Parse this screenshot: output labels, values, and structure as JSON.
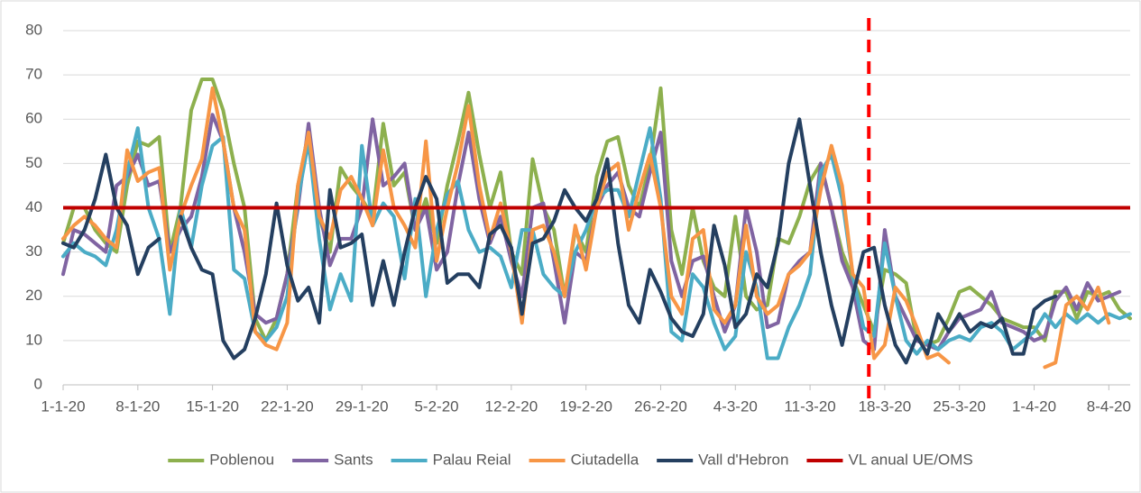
{
  "chart_data": {
    "type": "line",
    "categories": [
      "1-1-20",
      null,
      null,
      null,
      null,
      null,
      null,
      "8-1-20",
      null,
      null,
      null,
      null,
      null,
      null,
      "15-1-20",
      null,
      null,
      null,
      null,
      null,
      null,
      "22-1-20",
      null,
      null,
      null,
      null,
      null,
      null,
      "29-1-20",
      null,
      null,
      null,
      null,
      null,
      null,
      "5-2-20",
      null,
      null,
      null,
      null,
      null,
      null,
      "12-2-20",
      null,
      null,
      null,
      null,
      null,
      null,
      "19-2-20",
      null,
      null,
      null,
      null,
      null,
      null,
      "26-2-20",
      null,
      null,
      null,
      null,
      null,
      null,
      "4-3-20",
      null,
      null,
      null,
      null,
      null,
      null,
      "11-3-20",
      null,
      null,
      null,
      null,
      null,
      null,
      "18-3-20",
      null,
      null,
      null,
      null,
      null,
      null,
      "25-3-20",
      null,
      null,
      null,
      null,
      null,
      null,
      "1-4-20",
      null,
      null,
      null,
      null,
      null,
      null,
      "8-4-20",
      null,
      null
    ],
    "ylim": [
      0,
      80
    ],
    "yticks": [
      0,
      10,
      20,
      30,
      40,
      50,
      60,
      70,
      80
    ],
    "series": [
      {
        "name": "Poblenou",
        "color": "#8db04e",
        "values": [
          32,
          40,
          40,
          35,
          32,
          30,
          45,
          55,
          54,
          56,
          30,
          40,
          62,
          69,
          69,
          62,
          50,
          40,
          15,
          10,
          15,
          25,
          45,
          57,
          38,
          30,
          49,
          45,
          42,
          38,
          59,
          45,
          48,
          35,
          42,
          32,
          45,
          55,
          66,
          52,
          40,
          48,
          30,
          25,
          51,
          40,
          35,
          20,
          35,
          30,
          47,
          55,
          56,
          45,
          40,
          50,
          67,
          35,
          25,
          40,
          28,
          22,
          20,
          38,
          20,
          17,
          18,
          33,
          32,
          38,
          46,
          50,
          40,
          30,
          24,
          18,
          12,
          26,
          25,
          23,
          10,
          9,
          10,
          15,
          21,
          22,
          20,
          18,
          15,
          14,
          13,
          13,
          10,
          21,
          21,
          15,
          21,
          20,
          21,
          17,
          15
        ]
      },
      {
        "name": "Sants",
        "color": "#8064a2",
        "values": [
          25,
          35,
          34,
          32,
          30,
          45,
          47,
          52,
          45,
          46,
          30,
          35,
          38,
          47,
          61,
          55,
          40,
          30,
          16,
          14,
          15,
          25,
          40,
          59,
          40,
          27,
          33,
          33,
          40,
          60,
          45,
          47,
          50,
          35,
          40,
          26,
          30,
          45,
          57,
          42,
          32,
          38,
          28,
          20,
          40,
          41,
          28,
          14,
          30,
          28,
          40,
          45,
          48,
          40,
          38,
          48,
          57,
          28,
          20,
          28,
          29,
          20,
          12,
          18,
          40,
          30,
          13,
          14,
          25,
          28,
          30,
          50,
          40,
          28,
          22,
          10,
          8,
          35,
          20,
          15,
          10,
          9,
          8,
          12,
          15,
          16,
          17,
          21,
          14,
          13,
          12,
          10,
          11,
          19,
          22,
          17,
          23,
          19,
          20,
          21,
          null
        ]
      },
      {
        "name": "Palau Reial",
        "color": "#4bacc6",
        "values": [
          29,
          32,
          30,
          29,
          27,
          35,
          48,
          58,
          40,
          33,
          16,
          40,
          31,
          45,
          54,
          56,
          26,
          24,
          12,
          10,
          13,
          20,
          42,
          55,
          33,
          17,
          25,
          19,
          54,
          36,
          41,
          38,
          24,
          42,
          20,
          35,
          43,
          46,
          35,
          30,
          31,
          29,
          22,
          35,
          35,
          25,
          22,
          20,
          30,
          35,
          42,
          44,
          44,
          38,
          48,
          58,
          42,
          12,
          10,
          25,
          22,
          14,
          8,
          11,
          30,
          22,
          6,
          6,
          13,
          18,
          25,
          48,
          52,
          42,
          25,
          13,
          11,
          32,
          20,
          10,
          7,
          10,
          8,
          10,
          11,
          10,
          13,
          14,
          12,
          8,
          10,
          12,
          16,
          13,
          16,
          14,
          16,
          14,
          16,
          15,
          16
        ]
      },
      {
        "name": "Ciutadella",
        "color": "#f79646",
        "values": [
          33,
          36,
          38,
          36,
          33,
          31,
          53,
          46,
          48,
          49,
          26,
          38,
          45,
          51,
          67,
          55,
          40,
          35,
          12,
          9,
          8,
          14,
          45,
          57,
          38,
          33,
          44,
          47,
          42,
          36,
          53,
          40,
          36,
          31,
          55,
          28,
          40,
          50,
          63,
          45,
          33,
          41,
          30,
          14,
          35,
          36,
          30,
          20,
          36,
          26,
          40,
          48,
          50,
          35,
          44,
          52,
          40,
          20,
          16,
          33,
          35,
          17,
          14,
          18,
          36,
          20,
          16,
          18,
          25,
          27,
          30,
          44,
          54,
          45,
          25,
          22,
          6,
          9,
          22,
          19,
          13,
          6,
          7,
          5,
          null,
          null,
          null,
          null,
          null,
          null,
          null,
          null,
          4,
          5,
          18,
          20,
          17,
          22,
          14,
          null,
          null
        ]
      },
      {
        "name": "Vall d'Hebron",
        "color": "#243f60",
        "values": [
          32,
          31,
          35,
          42,
          52,
          40,
          36,
          25,
          31,
          33,
          null,
          38,
          31,
          26,
          25,
          10,
          6,
          8,
          15,
          25,
          41,
          27,
          19,
          22,
          14,
          44,
          31,
          32,
          34,
          18,
          28,
          18,
          30,
          40,
          47,
          42,
          23,
          25,
          25,
          22,
          34,
          36,
          31,
          16,
          32,
          33,
          37,
          44,
          40,
          37,
          42,
          51,
          32,
          18,
          14,
          26,
          21,
          15,
          12,
          11,
          16,
          36,
          27,
          13,
          16,
          25,
          22,
          32,
          50,
          60,
          45,
          30,
          18,
          9,
          20,
          30,
          31,
          18,
          9,
          5,
          11,
          7,
          16,
          12,
          16,
          12,
          14,
          13,
          15,
          7,
          7,
          17,
          19,
          20,
          null,
          null,
          null,
          null,
          null,
          null,
          null
        ]
      }
    ],
    "reference_line": {
      "name": "VL anual UE/OMS",
      "value": 40,
      "color": "#c00000"
    },
    "vertical_marker": {
      "x_index": 75,
      "color": "#ff0000",
      "style": "dashed"
    },
    "grid": true,
    "legend": "bottom"
  }
}
